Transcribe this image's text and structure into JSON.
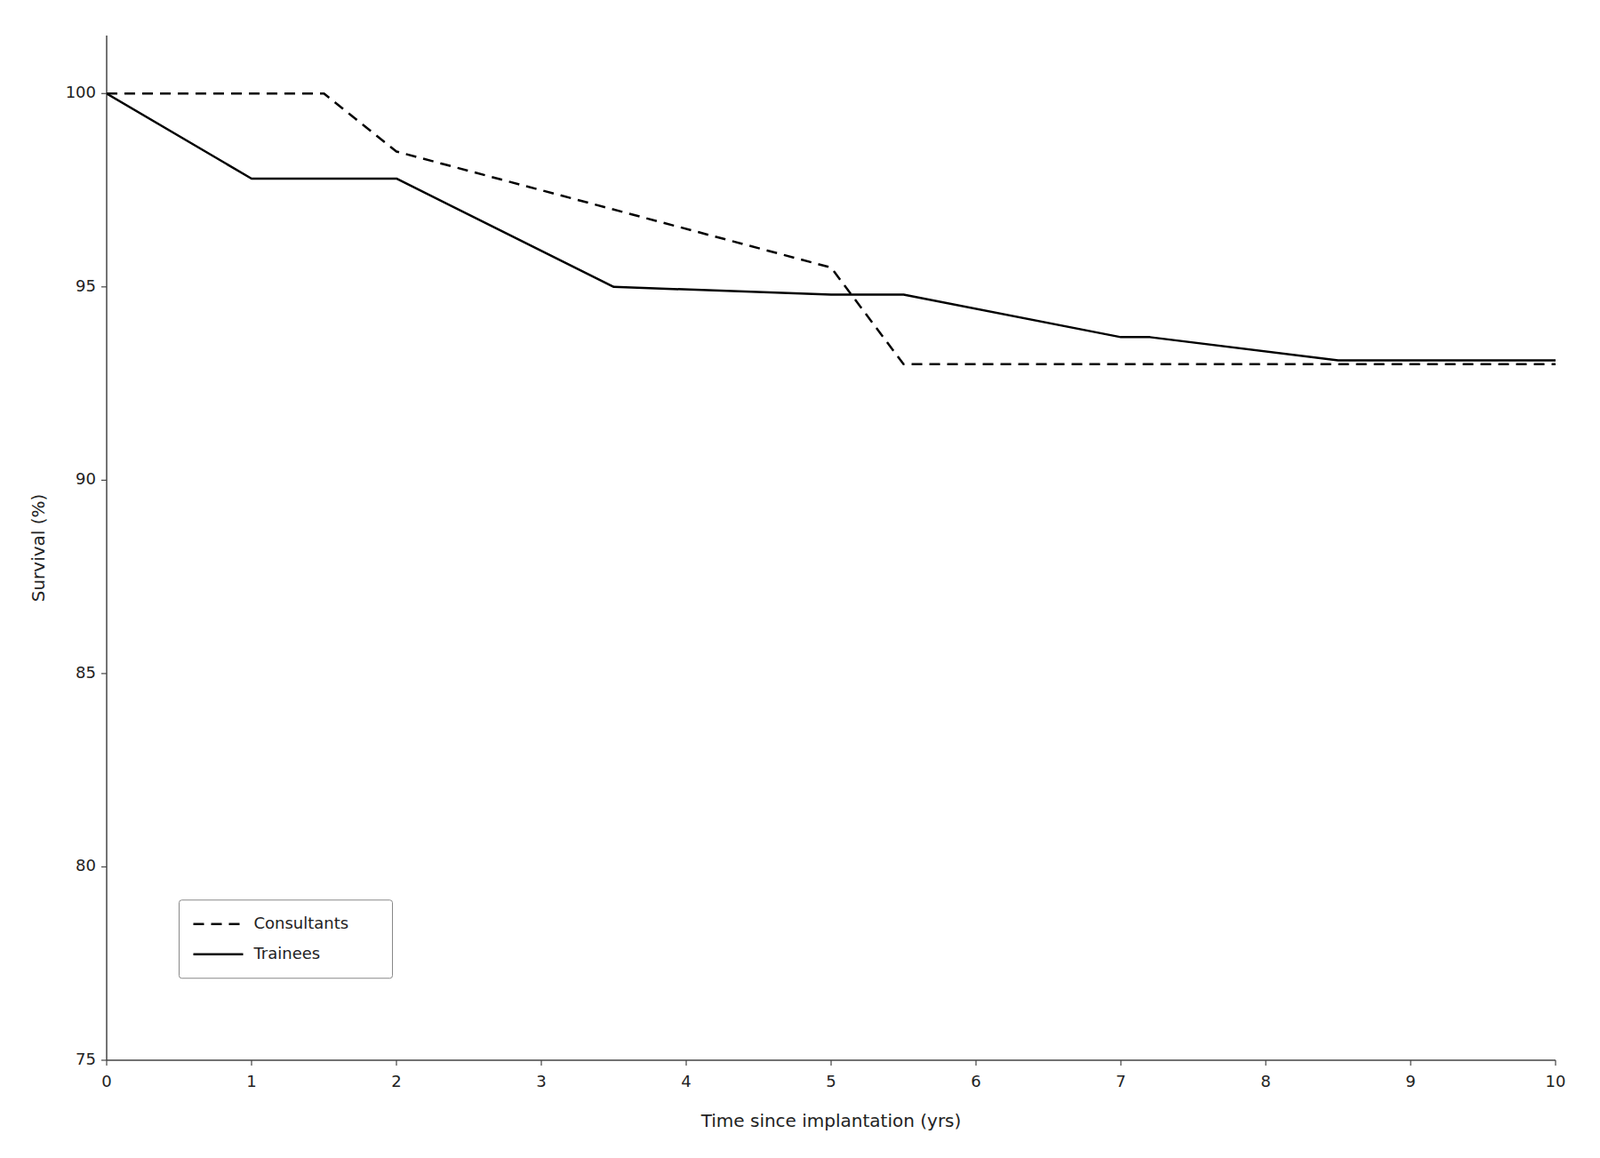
{
  "chart_data": {
    "type": "line",
    "x_label": "Time since implantation (yrs)",
    "y_label": "Survival (%)",
    "series": [
      {
        "name": "Consultants",
        "color": "#000000",
        "line_style": "dashed",
        "x": [
          0,
          1.5,
          2.0,
          5.0,
          5.5,
          10.0
        ],
        "values": [
          100.0,
          100.0,
          98.5,
          95.5,
          93.0,
          93.0
        ]
      },
      {
        "name": "Trainees",
        "color": "#000000",
        "line_style": "solid",
        "x": [
          0,
          1.0,
          2.0,
          3.5,
          5.0,
          5.5,
          5.5,
          7.0,
          7.2,
          8.5,
          8.7,
          10.0
        ],
        "values": [
          100.0,
          97.8,
          97.8,
          95.0,
          94.8,
          94.8,
          94.8,
          93.7,
          93.7,
          93.1,
          93.1,
          93.1
        ]
      }
    ],
    "xlim": [
      0,
      10
    ],
    "ylim": [
      75,
      101.5
    ],
    "xticks": [
      0,
      1,
      2,
      3,
      4,
      5,
      6,
      7,
      8,
      9,
      10
    ],
    "yticks": [
      75,
      80,
      85,
      90,
      95,
      100
    ],
    "grid": false,
    "legend": "lower left"
  }
}
